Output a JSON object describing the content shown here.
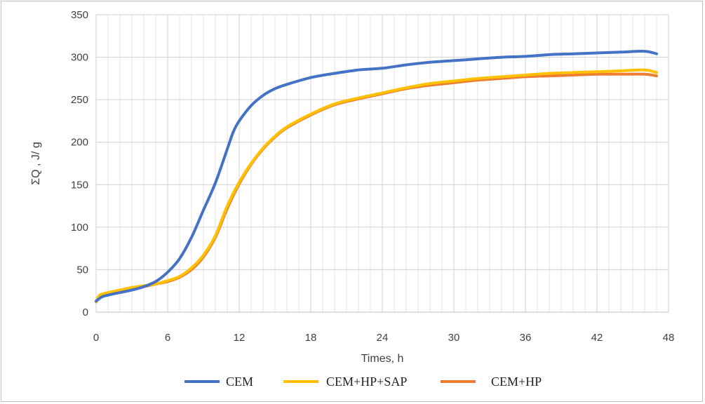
{
  "chart_data": {
    "type": "line",
    "xlabel": "Times, h",
    "ylabel": "ΣQ , J/ g",
    "xlim": [
      0,
      48
    ],
    "ylim": [
      0,
      350
    ],
    "xticks": [
      0,
      6,
      12,
      18,
      24,
      30,
      36,
      42,
      48
    ],
    "yticks": [
      0,
      50,
      100,
      150,
      200,
      250,
      300,
      350
    ],
    "grid": true,
    "legend_position": "bottom",
    "series": [
      {
        "name": "CEM",
        "color": "#4472c4",
        "x": [
          0,
          0.5,
          1,
          2,
          3,
          4,
          5,
          6,
          7,
          8,
          9,
          10,
          11,
          11.5,
          12,
          13,
          14,
          15,
          16,
          18,
          20,
          22,
          24,
          26,
          28,
          30,
          32,
          34,
          36,
          38,
          40,
          42,
          44,
          46,
          47
        ],
        "y": [
          13,
          18,
          20,
          23,
          26,
          30,
          36,
          47,
          63,
          88,
          120,
          152,
          192,
          212,
          225,
          243,
          255,
          263,
          268,
          276,
          281,
          285,
          287,
          291,
          294,
          296,
          298,
          300,
          301,
          303,
          304,
          305,
          306,
          307,
          304
        ]
      },
      {
        "name": "CEM+HP+SAP",
        "color": "#ffc000",
        "x": [
          0,
          0.3,
          1,
          2,
          3,
          4,
          5,
          6,
          7,
          8,
          9,
          10,
          11,
          12,
          13,
          14,
          15,
          16,
          18,
          20,
          22,
          24,
          26,
          28,
          30,
          32,
          34,
          36,
          38,
          40,
          42,
          44,
          46,
          47
        ],
        "y": [
          12,
          20,
          23,
          26,
          29,
          31,
          33,
          37,
          42,
          52,
          67,
          90,
          125,
          153,
          175,
          193,
          207,
          218,
          233,
          245,
          252,
          258,
          264,
          269,
          272,
          275,
          277,
          279,
          281,
          282,
          283,
          284,
          285,
          282
        ]
      },
      {
        "name": "CEM+HP",
        "color": "#ed7d31",
        "x": [
          0,
          0.3,
          1,
          2,
          3,
          4,
          5,
          6,
          7,
          8,
          9,
          10,
          11,
          12,
          13,
          14,
          15,
          16,
          18,
          20,
          22,
          24,
          26,
          28,
          30,
          32,
          34,
          36,
          38,
          40,
          42,
          44,
          46,
          47
        ],
        "y": [
          12,
          19,
          22,
          25,
          28,
          30,
          33,
          36,
          41,
          50,
          65,
          88,
          122,
          151,
          174,
          192,
          206,
          217,
          232,
          244,
          251,
          257,
          263,
          267,
          270,
          273,
          275,
          277,
          278,
          279,
          280,
          280,
          280,
          278
        ]
      }
    ]
  }
}
